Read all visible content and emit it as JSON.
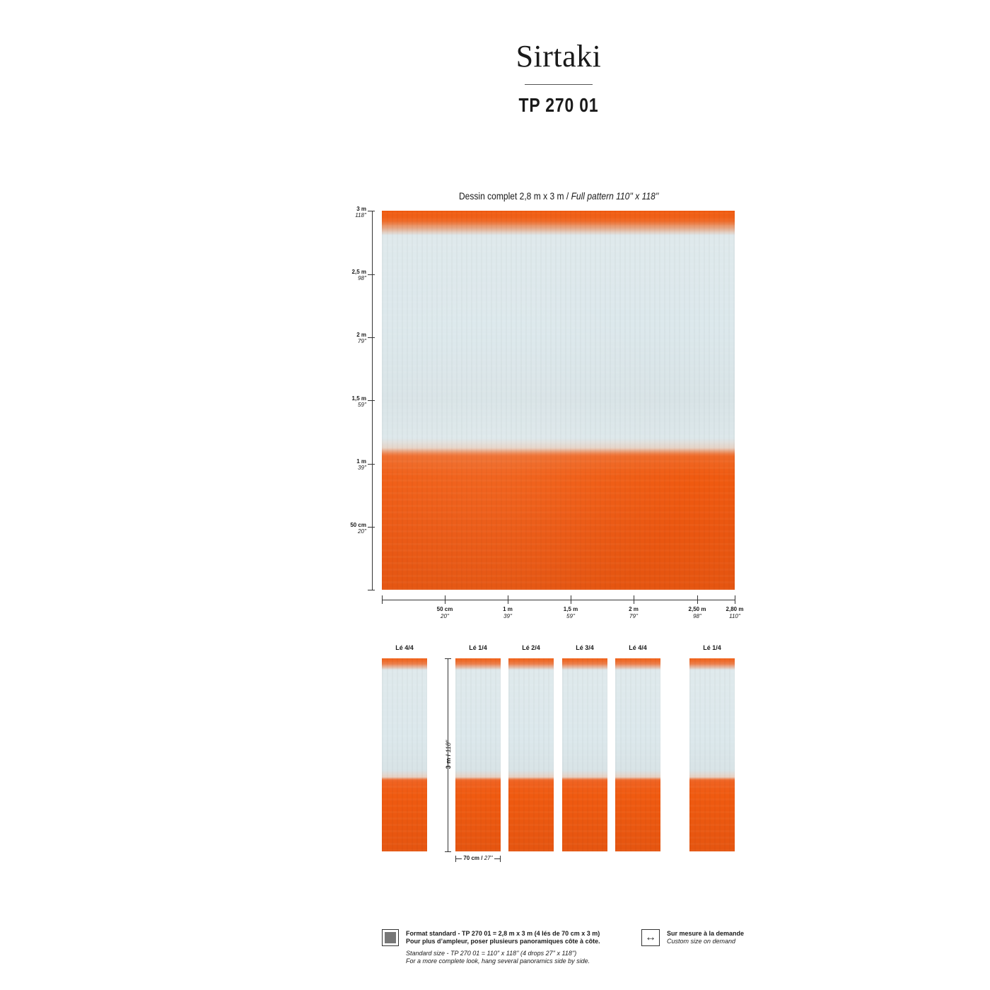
{
  "header": {
    "title": "Sirtaki",
    "reference": "TP 270 01"
  },
  "full_pattern": {
    "caption_fr": "Dessin complet 2,8 m x 3 m / ",
    "caption_en": "Full pattern 110'' x 118''",
    "colors": {
      "orange": "#f05a10",
      "pale_blue": "#dce8ec"
    }
  },
  "vertical_ruler": [
    {
      "metric": "3 m",
      "imperial": "118''"
    },
    {
      "metric": "2,5 m",
      "imperial": "98''"
    },
    {
      "metric": "2 m",
      "imperial": "79''"
    },
    {
      "metric": "1,5 m",
      "imperial": "59''"
    },
    {
      "metric": "1 m",
      "imperial": "39''"
    },
    {
      "metric": "50 cm",
      "imperial": "20''"
    }
  ],
  "horizontal_ruler": [
    {
      "metric": "50 cm",
      "imperial": "20''"
    },
    {
      "metric": "1 m",
      "imperial": "39''"
    },
    {
      "metric": "1,5 m",
      "imperial": "59''"
    },
    {
      "metric": "2 m",
      "imperial": "79''"
    },
    {
      "metric": "2,50 m",
      "imperial": "98''"
    },
    {
      "metric": "2,80 m",
      "imperial": "110''"
    }
  ],
  "panels": [
    {
      "label": "Lé 4/4"
    },
    {
      "label": "Lé 1/4"
    },
    {
      "label": "Lé 2/4"
    },
    {
      "label": "Lé 3/4"
    },
    {
      "label": "Lé 4/4"
    },
    {
      "label": "Lé 1/4"
    }
  ],
  "dimensions": {
    "height_metric": "3 m / ",
    "height_imperial": "118''",
    "width_metric": "70 cm / ",
    "width_imperial": "27''"
  },
  "footer": {
    "standard_line1": "Format standard - TP 270 01 = 2,8 m x 3 m (4 lés de 70 cm x 3 m)",
    "standard_line2": "Pour plus d’ampleur, poser plusieurs panoramiques côte à côte.",
    "standard_line3": "Standard size - TP 270 01 = 110'' x 118'' (4 drops 27'' x 118'')",
    "standard_line4": "For a more complete look, hang several panoramics side by side.",
    "custom_line1": "Sur mesure à la demande",
    "custom_line2": "Custom size on demand",
    "custom_icon": "double-arrow-icon"
  }
}
